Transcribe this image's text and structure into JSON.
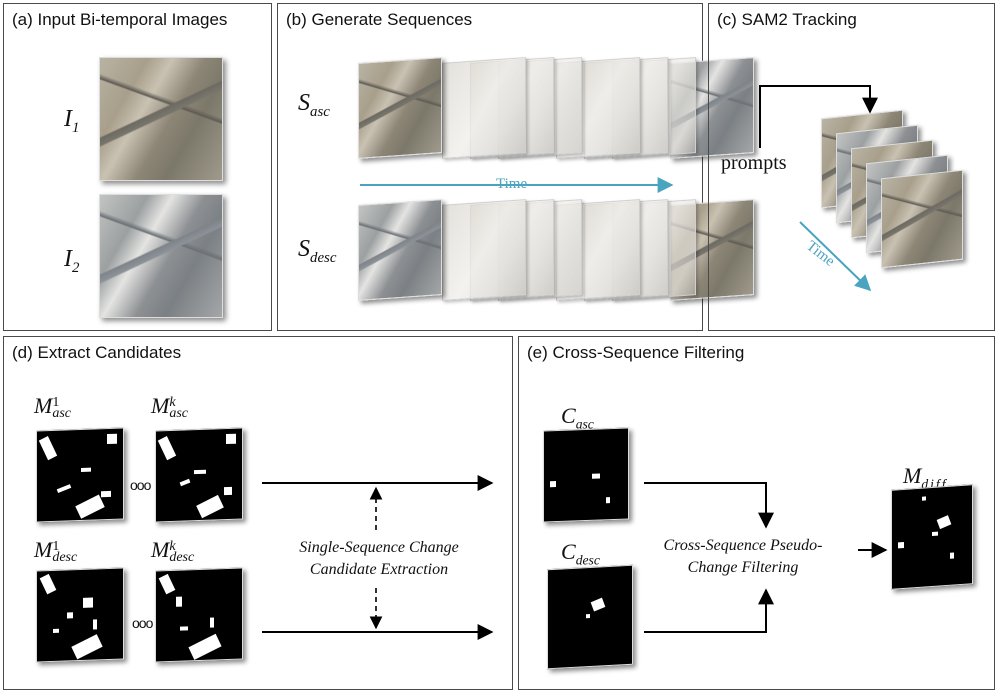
{
  "panels": {
    "a": {
      "title": "(a) Input Bi-temporal Images",
      "i1": {
        "base": "I",
        "sub": "1"
      },
      "i2": {
        "base": "I",
        "sub": "2"
      }
    },
    "b": {
      "title": "(b) Generate Sequences",
      "s_asc": {
        "base": "S",
        "sub": "asc"
      },
      "s_desc": {
        "base": "S",
        "sub": "desc"
      },
      "time": "Time"
    },
    "c": {
      "title": "(c) SAM2 Tracking",
      "prompts": "prompts",
      "time": "Time"
    },
    "d": {
      "title": "(d) Extract Candidates",
      "m1_asc": {
        "base": "M",
        "sup": "1",
        "sub": "asc"
      },
      "mk_asc": {
        "base": "M",
        "sup": "k",
        "sub": "asc"
      },
      "m1_desc": {
        "base": "M",
        "sup": "1",
        "sub": "desc"
      },
      "mk_desc": {
        "base": "M",
        "sup": "k",
        "sub": "desc"
      },
      "ellipsis": "ooo",
      "note_line1": "Single-Sequence Change",
      "note_line2": "Candidate Extraction"
    },
    "e": {
      "title": "(e) Cross-Sequence Filtering",
      "c_asc": {
        "base": "C",
        "sub": "asc"
      },
      "c_desc": {
        "base": "C",
        "sub": "desc"
      },
      "m_diff": {
        "base": "M",
        "sub": "diff"
      },
      "note_line1": "Cross-Sequence Pseudo-",
      "note_line2": "Change Filtering"
    }
  },
  "colors": {
    "time_arrow": "#4aa3bf",
    "border": "#4a4a4a"
  }
}
